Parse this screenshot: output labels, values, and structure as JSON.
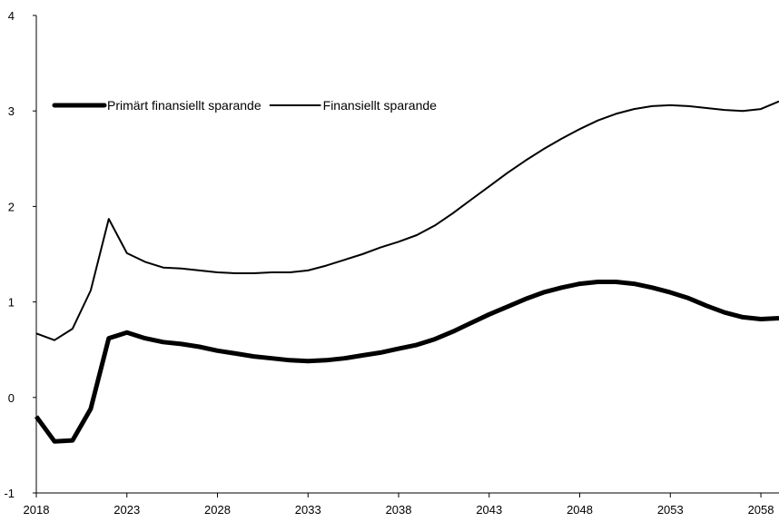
{
  "chart_data": {
    "type": "line",
    "title": "",
    "xlabel": "",
    "ylabel": "",
    "xlim": [
      2018,
      2059
    ],
    "ylim": [
      -1,
      4
    ],
    "x_ticks": [
      "2018",
      "2023",
      "2028",
      "2033",
      "2038",
      "2043",
      "2048",
      "2053",
      "2058"
    ],
    "y_ticks": [
      "4",
      "3",
      "2",
      "1",
      "0",
      "-1"
    ],
    "grid": false,
    "legend_position": "top-left",
    "x": [
      2018,
      2019,
      2020,
      2021,
      2022,
      2023,
      2024,
      2025,
      2026,
      2027,
      2028,
      2029,
      2030,
      2031,
      2032,
      2033,
      2034,
      2035,
      2036,
      2037,
      2038,
      2039,
      2040,
      2041,
      2042,
      2043,
      2044,
      2045,
      2046,
      2047,
      2048,
      2049,
      2050,
      2051,
      2052,
      2053,
      2054,
      2055,
      2056,
      2057,
      2058,
      2059
    ],
    "series": [
      {
        "name": "Primärt finansiellt sparande",
        "color": "#000000",
        "style": "thick",
        "values": [
          -0.2,
          -0.46,
          -0.45,
          -0.12,
          0.62,
          0.68,
          0.62,
          0.58,
          0.56,
          0.53,
          0.49,
          0.46,
          0.43,
          0.41,
          0.39,
          0.38,
          0.39,
          0.41,
          0.44,
          0.47,
          0.51,
          0.55,
          0.61,
          0.69,
          0.78,
          0.87,
          0.95,
          1.03,
          1.1,
          1.15,
          1.19,
          1.21,
          1.21,
          1.19,
          1.15,
          1.1,
          1.04,
          0.96,
          0.89,
          0.84,
          0.82,
          0.83
        ]
      },
      {
        "name": "Finansiellt sparande",
        "color": "#000000",
        "style": "thin",
        "values": [
          0.67,
          0.6,
          0.72,
          1.12,
          1.87,
          1.51,
          1.42,
          1.36,
          1.35,
          1.33,
          1.31,
          1.3,
          1.3,
          1.31,
          1.31,
          1.33,
          1.38,
          1.44,
          1.5,
          1.57,
          1.63,
          1.7,
          1.8,
          1.93,
          2.07,
          2.21,
          2.35,
          2.48,
          2.6,
          2.71,
          2.81,
          2.9,
          2.97,
          3.02,
          3.05,
          3.06,
          3.05,
          3.03,
          3.01,
          3.0,
          3.02,
          3.1
        ]
      }
    ]
  }
}
